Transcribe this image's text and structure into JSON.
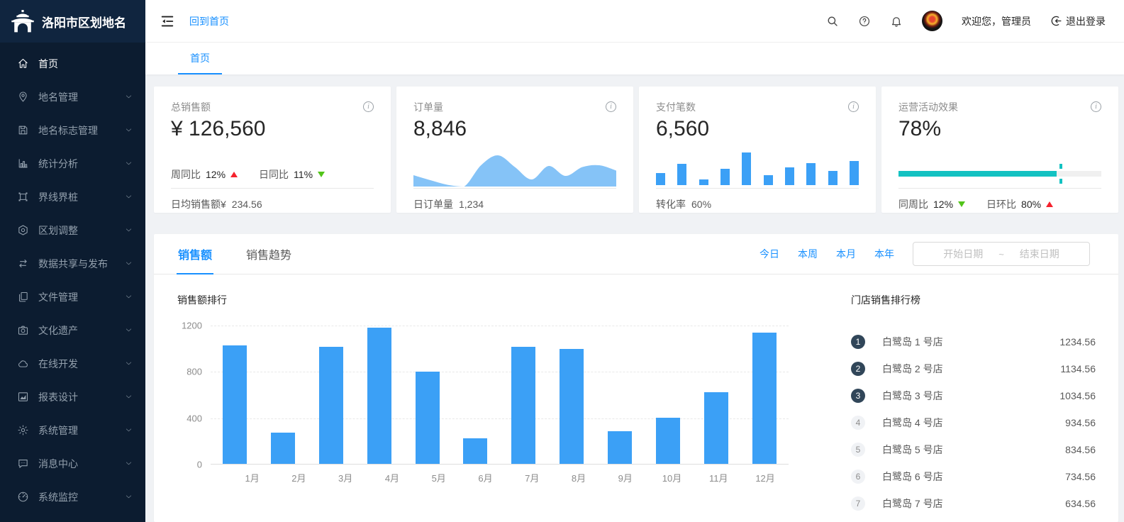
{
  "app": {
    "title": "洛阳市区划地名",
    "back_home": "回到首页",
    "welcome": "欢迎您，管理员",
    "logout": "退出登录"
  },
  "tabs": {
    "home": "首页"
  },
  "sidebar": {
    "items": [
      {
        "id": "home",
        "label": "首页",
        "icon": "home",
        "active": true,
        "expandable": false
      },
      {
        "id": "placename",
        "label": "地名管理",
        "icon": "pin",
        "active": false,
        "expandable": true
      },
      {
        "id": "sign",
        "label": "地名标志管理",
        "icon": "save",
        "active": false,
        "expandable": true
      },
      {
        "id": "stats",
        "label": "统计分析",
        "icon": "chart-bar",
        "active": false,
        "expandable": true
      },
      {
        "id": "boundary",
        "label": "界线界桩",
        "icon": "frame",
        "active": false,
        "expandable": true
      },
      {
        "id": "adjust",
        "label": "区划调整",
        "icon": "hexagon",
        "active": false,
        "expandable": true
      },
      {
        "id": "share",
        "label": "数据共享与发布",
        "icon": "sync",
        "active": false,
        "expandable": true
      },
      {
        "id": "files",
        "label": "文件管理",
        "icon": "files",
        "active": false,
        "expandable": true
      },
      {
        "id": "heritage",
        "label": "文化遗产",
        "icon": "camera",
        "active": false,
        "expandable": true
      },
      {
        "id": "dev",
        "label": "在线开发",
        "icon": "cloud",
        "active": false,
        "expandable": true
      },
      {
        "id": "report",
        "label": "报表设计",
        "icon": "chart-area",
        "active": false,
        "expandable": true
      },
      {
        "id": "system",
        "label": "系统管理",
        "icon": "gear",
        "active": false,
        "expandable": true
      },
      {
        "id": "message",
        "label": "消息中心",
        "icon": "comment",
        "active": false,
        "expandable": true
      },
      {
        "id": "monitor",
        "label": "系统监控",
        "icon": "gauge",
        "active": false,
        "expandable": true
      }
    ]
  },
  "cards": {
    "sales": {
      "title": "总销售额",
      "value": "¥ 126,560",
      "week_label": "周同比",
      "week_value": "12%",
      "week_dir": "up",
      "day_label": "日同比",
      "day_value": "11%",
      "day_dir": "down",
      "footer_label": "日均销售额¥",
      "footer_value": "234.56"
    },
    "orders": {
      "title": "订单量",
      "value": "8,846",
      "footer_label": "日订单量",
      "footer_value": "1,234"
    },
    "payments": {
      "title": "支付笔数",
      "value": "6,560",
      "footer_label": "转化率",
      "footer_value": "60%"
    },
    "activity": {
      "title": "运营活动效果",
      "value": "78%",
      "progress_pct": 78,
      "target_pct": 80,
      "wow_label": "同周比",
      "wow_value": "12%",
      "wow_dir": "down",
      "dod_label": "日环比",
      "dod_value": "80%",
      "dod_dir": "up"
    }
  },
  "panel": {
    "tab_sales": "销售额",
    "tab_trend": "销售趋势",
    "links": [
      {
        "id": "today",
        "label": "今日"
      },
      {
        "id": "week",
        "label": "本周"
      },
      {
        "id": "month",
        "label": "本月"
      },
      {
        "id": "year",
        "label": "本年"
      }
    ],
    "date_start_placeholder": "开始日期",
    "date_separator": "~",
    "date_end_placeholder": "结束日期",
    "chart_title": "销售额排行",
    "ranking_title": "门店销售排行榜"
  },
  "ranking": {
    "items": [
      {
        "rank": 1,
        "name": "白鹭岛 1 号店",
        "value": "1234.56"
      },
      {
        "rank": 2,
        "name": "白鹭岛 2 号店",
        "value": "1134.56"
      },
      {
        "rank": 3,
        "name": "白鹭岛 3 号店",
        "value": "1034.56"
      },
      {
        "rank": 4,
        "name": "白鹭岛 4 号店",
        "value": "934.56"
      },
      {
        "rank": 5,
        "name": "白鹭岛 5 号店",
        "value": "834.56"
      },
      {
        "rank": 6,
        "name": "白鹭岛 6 号店",
        "value": "734.56"
      },
      {
        "rank": 7,
        "name": "白鹭岛 7 号店",
        "value": "634.56"
      }
    ]
  },
  "chart_data": [
    {
      "type": "bar",
      "name": "monthly-sales-ranking",
      "title": "销售额排行",
      "categories": [
        "1月",
        "2月",
        "3月",
        "4月",
        "5月",
        "6月",
        "7月",
        "8月",
        "9月",
        "10月",
        "11月",
        "12月"
      ],
      "values": [
        1020,
        270,
        1010,
        1175,
        795,
        220,
        1010,
        990,
        285,
        400,
        620,
        1135
      ],
      "xlabel": "",
      "ylabel": "",
      "ylim": [
        0,
        1200
      ],
      "yticks": [
        0,
        400,
        800,
        1200
      ],
      "grid": "dashed-horizontal",
      "bar_color": "#3ba0f6",
      "legend": "none"
    },
    {
      "type": "area",
      "name": "orders-sparkline",
      "values": [
        32,
        18,
        5,
        0,
        60,
        88,
        55,
        20,
        58,
        30,
        55,
        60,
        45
      ],
      "ylim": [
        0,
        100
      ],
      "fill_color": "#85c3f7"
    },
    {
      "type": "bar",
      "name": "payments-sparkline",
      "values": [
        36,
        66,
        18,
        50,
        100,
        30,
        54,
        68,
        44,
        74
      ],
      "ylim": [
        0,
        100
      ],
      "bar_color": "#3ba0f6"
    },
    {
      "type": "progress",
      "name": "activity-progress",
      "value": 78,
      "target": 80,
      "color": "#13c2c2"
    }
  ],
  "colors": {
    "accent_blue": "#1890ff",
    "bar_blue": "#3ba0f6",
    "area_blue": "#85c3f7",
    "progress_teal": "#13c2c2",
    "up_red": "#f5222d",
    "down_green": "#52c41a",
    "sidebar_bg": "#0c1c30",
    "logo_bg": "#10253f",
    "rank_badge_dark": "#314659",
    "content_bg": "#f0f2f5"
  }
}
